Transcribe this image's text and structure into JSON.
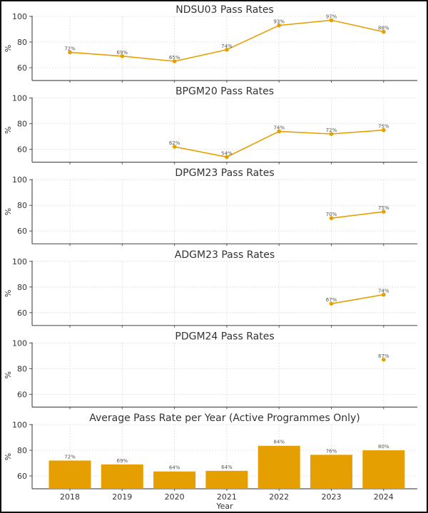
{
  "chart_data": [
    {
      "type": "line",
      "title": "NDSU03 Pass Rates",
      "ylabel": "%",
      "ylim": [
        50,
        100
      ],
      "yticks": [
        60,
        80,
        100
      ],
      "grid": true,
      "x": [
        "2018",
        "2019",
        "2020",
        "2021",
        "2022",
        "2023",
        "2024"
      ],
      "values": [
        72,
        69,
        65,
        74,
        93,
        97,
        88
      ],
      "labels": [
        "72%",
        "69%",
        "65%",
        "74%",
        "93%",
        "97%",
        "88%"
      ]
    },
    {
      "type": "line",
      "title": "BPGM20 Pass Rates",
      "ylabel": "%",
      "ylim": [
        50,
        100
      ],
      "yticks": [
        60,
        80,
        100
      ],
      "grid": true,
      "x": [
        "2020",
        "2021",
        "2022",
        "2023",
        "2024"
      ],
      "values": [
        62,
        54,
        74,
        72,
        75
      ],
      "labels": [
        "62%",
        "54%",
        "74%",
        "72%",
        "75%"
      ]
    },
    {
      "type": "line",
      "title": "DPGM23 Pass Rates",
      "ylabel": "%",
      "ylim": [
        50,
        100
      ],
      "yticks": [
        60,
        80,
        100
      ],
      "grid": true,
      "x": [
        "2023",
        "2024"
      ],
      "values": [
        70,
        75
      ],
      "labels": [
        "70%",
        "75%"
      ]
    },
    {
      "type": "line",
      "title": "ADGM23 Pass Rates",
      "ylabel": "%",
      "ylim": [
        50,
        100
      ],
      "yticks": [
        60,
        80,
        100
      ],
      "grid": true,
      "x": [
        "2023",
        "2024"
      ],
      "values": [
        67,
        74
      ],
      "labels": [
        "67%",
        "74%"
      ]
    },
    {
      "type": "line",
      "title": "PDGM24 Pass Rates",
      "ylabel": "%",
      "ylim": [
        50,
        100
      ],
      "yticks": [
        60,
        80,
        100
      ],
      "grid": true,
      "x": [
        "2024"
      ],
      "values": [
        87
      ],
      "labels": [
        "87%"
      ]
    },
    {
      "type": "bar",
      "title": "Average Pass Rate per Year (Active Programmes Only)",
      "ylabel": "%",
      "xlabel": "Year",
      "ylim": [
        50,
        100
      ],
      "yticks": [
        60,
        80,
        100
      ],
      "grid": true,
      "categories": [
        "2018",
        "2019",
        "2020",
        "2021",
        "2022",
        "2023",
        "2024"
      ],
      "values": [
        72,
        69,
        63.5,
        64,
        83.5,
        76.5,
        80
      ],
      "labels": [
        "72%",
        "69%",
        "64%",
        "64%",
        "84%",
        "76%",
        "80%"
      ]
    }
  ],
  "shared_x": [
    "2018",
    "2019",
    "2020",
    "2021",
    "2022",
    "2023",
    "2024"
  ],
  "colors": {
    "series": "#E69F00",
    "axis": "#555555",
    "grid": "#dddddd",
    "text": "#333333"
  }
}
